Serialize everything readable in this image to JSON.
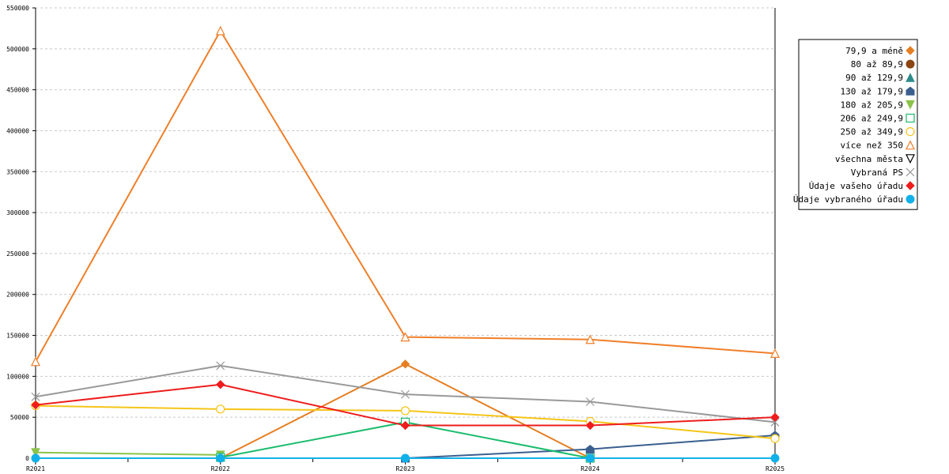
{
  "chart_data": {
    "type": "line",
    "categories": [
      "R2021",
      "R2022",
      "R2023",
      "R2024",
      "R2025"
    ],
    "ylim": [
      0,
      550000
    ],
    "y_ticks": [
      0,
      50000,
      100000,
      150000,
      200000,
      250000,
      300000,
      350000,
      400000,
      450000,
      500000,
      550000
    ],
    "grid": true,
    "legend_position": "right",
    "series": [
      {
        "name": "79,9 a méně",
        "color": "#e67e22",
        "marker": "diamond",
        "values": [
          null,
          0,
          115000,
          0,
          null
        ]
      },
      {
        "name": "80 až 89,9",
        "color": "#8b4513",
        "marker": "circle",
        "values": [
          null,
          null,
          null,
          null,
          null
        ]
      },
      {
        "name": "90 až 129,9",
        "color": "#2e8b8b",
        "marker": "triangle-up-filled",
        "values": [
          null,
          null,
          null,
          null,
          null
        ]
      },
      {
        "name": "130 až 179,9",
        "color": "#3a5f8f",
        "marker": "pentagon",
        "values": [
          null,
          null,
          0,
          11000,
          28000
        ]
      },
      {
        "name": "180 až 205,9",
        "color": "#8bc34a",
        "marker": "triangle-down-filled",
        "values": [
          7000,
          4000,
          null,
          null,
          null
        ]
      },
      {
        "name": "206 až 249,9",
        "color": "#1abc6c",
        "marker": "square-open",
        "values": [
          null,
          1000,
          44000,
          0,
          null
        ]
      },
      {
        "name": "250 až 349,9",
        "color": "#f5c518",
        "marker": "circle-open",
        "values": [
          64000,
          60000,
          58000,
          45000,
          24000
        ]
      },
      {
        "name": "více než 350",
        "color": "#f07f2a",
        "marker": "triangle-up-open",
        "values": [
          118000,
          522000,
          148000,
          145000,
          128000
        ]
      },
      {
        "name": "všechna města",
        "color": "#000000",
        "marker": "triangle-down-open",
        "values": [
          null,
          null,
          null,
          null,
          null
        ]
      },
      {
        "name": "Vybraná PS",
        "color": "#999999",
        "marker": "cross",
        "values": [
          75000,
          113000,
          78000,
          69000,
          44000
        ]
      },
      {
        "name": "Údaje vašeho úřadu",
        "color": "#ee1c1c",
        "marker": "diamond",
        "values": [
          65000,
          90000,
          40000,
          40000,
          50000
        ]
      },
      {
        "name": "Údaje vybraného úřadu",
        "color": "#12b0e8",
        "marker": "circle",
        "values": [
          0,
          0,
          0,
          0,
          0
        ]
      }
    ]
  }
}
